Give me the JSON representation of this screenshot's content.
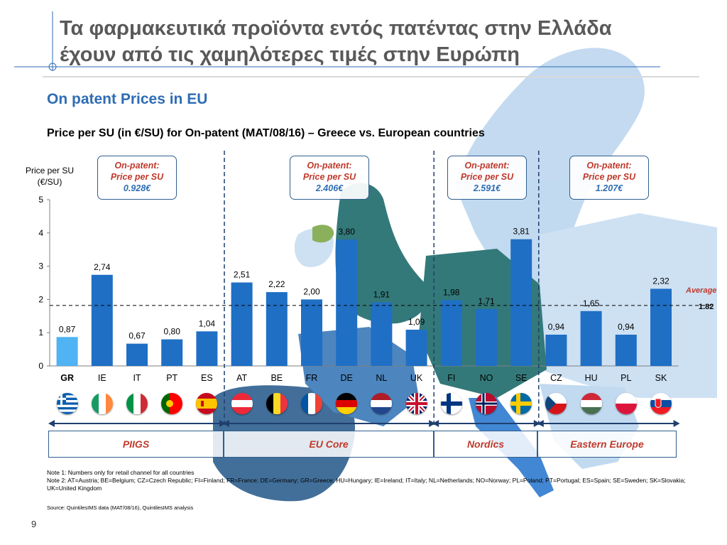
{
  "title_line1": "Τα φαρμακευτικά  προϊόντα εντός πατέντας στην Ελλάδα",
  "title_line2": "έχουν από τις χαμηλότερες τιμές στην Ευρώπη",
  "subtitle": "On patent Prices in EU",
  "chart_title": "Price per SU (in €/SU) for On-patent (MAT/08/16) – Greece vs. European countries",
  "colors": {
    "bar": "#1f6fc5",
    "highlight": "#4fb3f4",
    "accent_red": "#c0392b",
    "frame": "#2e5f8f"
  },
  "chart_data": {
    "type": "bar",
    "ylabel": "Price per SU\n(€/SU)",
    "ylim": [
      0,
      5
    ],
    "yticks": [
      0,
      1,
      2,
      3,
      4,
      5
    ],
    "grid": false,
    "categories": [
      "GR",
      "IE",
      "IT",
      "PT",
      "ES",
      "AT",
      "BE",
      "FR",
      "DE",
      "NL",
      "UK",
      "FI",
      "NO",
      "SE",
      "CZ",
      "HU",
      "PL",
      "SK"
    ],
    "values": [
      0.87,
      2.74,
      0.67,
      0.8,
      1.04,
      2.51,
      2.22,
      2.0,
      3.8,
      1.91,
      1.09,
      1.98,
      1.71,
      3.81,
      0.94,
      1.65,
      0.94,
      2.32
    ],
    "value_labels": [
      "0,87",
      "2,74",
      "0,67",
      "0,80",
      "1,04",
      "2,51",
      "2,22",
      "2,00",
      "3,80",
      "1,91",
      "1,09",
      "1,98",
      "1,71",
      "3,81",
      "0,94",
      "1,65",
      "0,94",
      "2,32"
    ],
    "highlight_category": "GR",
    "average": {
      "label": "Average",
      "value": 1.82,
      "value_label": "1.82"
    },
    "groups": [
      {
        "name": "PIIGS",
        "range": [
          0,
          4
        ],
        "box_label": "On-patent:",
        "box_label2": "Price per SU",
        "box_value": "0.928€"
      },
      {
        "name": "EU Core",
        "range": [
          5,
          10
        ],
        "box_label": "On-patent:",
        "box_label2": "Price per SU",
        "box_value": "2.406€"
      },
      {
        "name": "Nordics",
        "range": [
          11,
          13
        ],
        "box_label": "On-patent:",
        "box_label2": "Price per SU",
        "box_value": "2.591€"
      },
      {
        "name": "Eastern Europe",
        "range": [
          14,
          17
        ],
        "box_label": "On-patent:",
        "box_label2": "Price per SU",
        "box_value": "1.207€"
      }
    ]
  },
  "flag_icons": [
    "greece-flag",
    "ireland-flag",
    "italy-flag",
    "portugal-flag",
    "spain-flag",
    "austria-flag",
    "belgium-flag",
    "france-flag",
    "germany-flag",
    "netherlands-flag",
    "uk-flag",
    "finland-flag",
    "norway-flag",
    "sweden-flag",
    "czech-flag",
    "hungary-flag",
    "poland-flag",
    "slovakia-flag"
  ],
  "note1": "Note 1: Numbers only for retail channel for all countries",
  "note2": "Note 2: AT=Austria; BE=Belgium; CZ=Czech Republic; FI=Finland; FR=France; DE=Germany; GR=Greece; HU=Hungary; IE=Ireland; IT=Italy; NL=Netherlands; NO=Norway; PL=Poland; PT=Portugal; ES=Spain; SE=Sweden; SK=Slovakia; UK=United Kingdom",
  "source": "Source: QuintilesIMS data (MAT/08/16), QuintilesIMS analysis",
  "page_number": "9"
}
